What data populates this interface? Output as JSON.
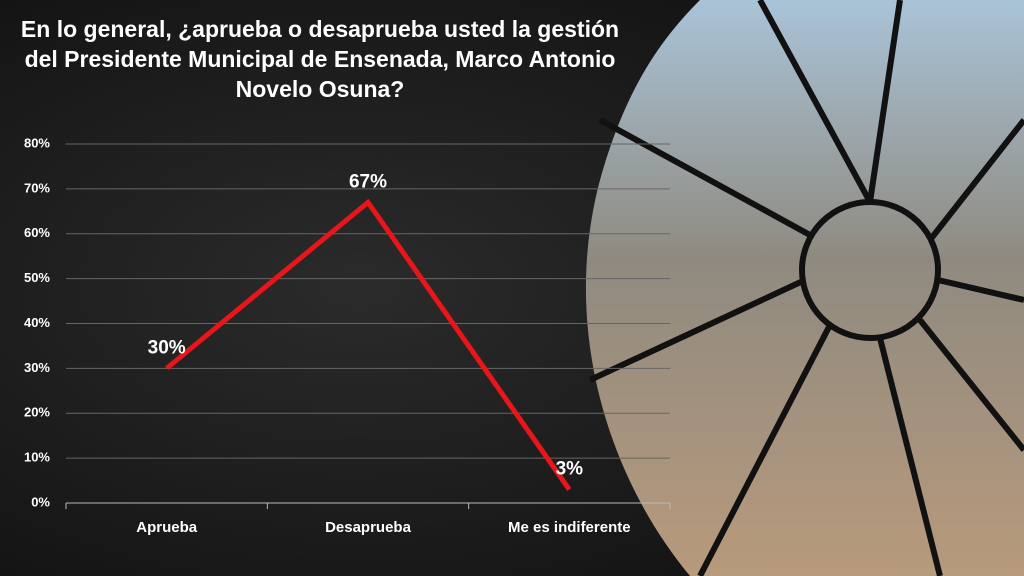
{
  "chart_data": {
    "type": "line",
    "title": "En lo general, ¿aprueba o desaprueba usted la gestión del Presidente Municipal de Ensenada, Marco Antonio Novelo Osuna?",
    "categories": [
      "Aprueba",
      "Desaprueba",
      "Me es indiferente"
    ],
    "values": [
      30,
      67,
      3
    ],
    "value_labels": [
      "30%",
      "67%",
      "3%"
    ],
    "color": "#e8151b",
    "ylim": [
      0,
      80
    ],
    "yticks": [
      {
        "value": 0,
        "label": "0%"
      },
      {
        "value": 10,
        "label": "10%"
      },
      {
        "value": 20,
        "label": "20%"
      },
      {
        "value": 30,
        "label": "30%"
      },
      {
        "value": 40,
        "label": "40%"
      },
      {
        "value": 50,
        "label": "50%"
      },
      {
        "value": 60,
        "label": "60%"
      },
      {
        "value": 70,
        "label": "70%"
      },
      {
        "value": 80,
        "label": "80%"
      }
    ],
    "grid": true
  }
}
